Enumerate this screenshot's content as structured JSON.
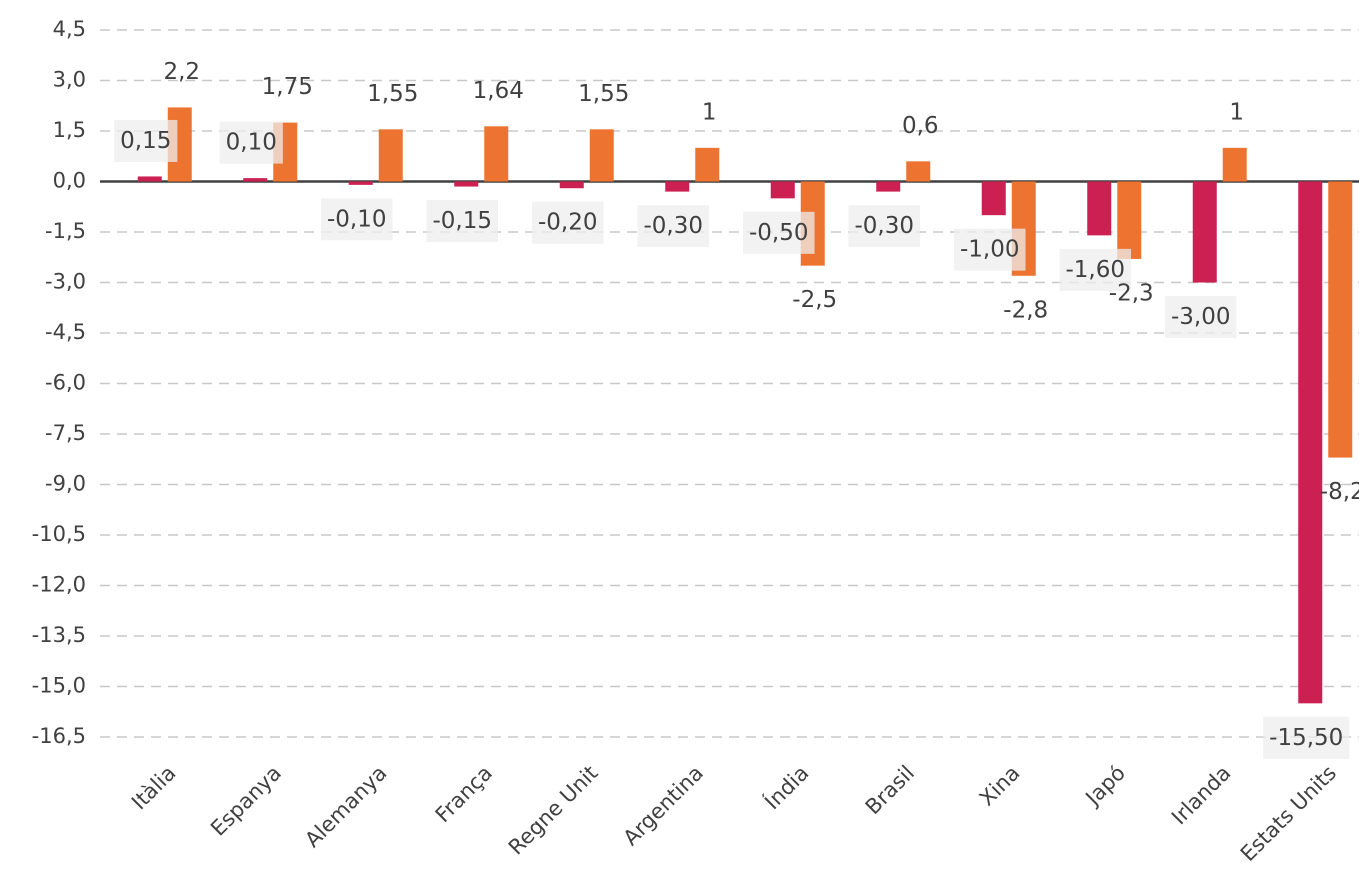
{
  "chart_data": {
    "type": "bar",
    "categories": [
      "Itàlia",
      "Espanya",
      "Alemanya",
      "França",
      "Regne Unit",
      "Argentina",
      "Índia",
      "Brasil",
      "Xina",
      "Japó",
      "Irlanda",
      "Estats Units"
    ],
    "series": [
      {
        "color": "#cc1f52",
        "values": [
          0.15,
          0.1,
          -0.1,
          -0.15,
          -0.2,
          -0.3,
          -0.5,
          -0.3,
          -1.0,
          -1.6,
          -3.0,
          -15.5
        ],
        "value_labels": [
          "0,15",
          "0,10",
          "-0,10",
          "-0,15",
          "-0,20",
          "-0,30",
          "-0,50",
          "-0,30",
          "-1,00",
          "-1,60",
          "-3,00",
          "-15,50"
        ]
      },
      {
        "color": "#ed7430",
        "values": [
          2.2,
          1.75,
          1.55,
          1.64,
          1.55,
          1,
          -2.5,
          0.6,
          -2.8,
          -2.3,
          1,
          -8.2
        ],
        "value_labels": [
          "2,2",
          "1,75",
          "1,55",
          "1,64",
          "1,55",
          "1",
          "-2,5",
          "0,6",
          "-2,8",
          "-2,3",
          "1",
          "-8,2"
        ]
      }
    ],
    "ylim": [
      -16.5,
      4.5
    ],
    "yticks": [
      {
        "value": 4.5,
        "label": "4,5"
      },
      {
        "value": 3.0,
        "label": "3,0"
      },
      {
        "value": 1.5,
        "label": "1,5"
      },
      {
        "value": 0.0,
        "label": "0,0"
      },
      {
        "value": -1.5,
        "label": "-1,5"
      },
      {
        "value": -3.0,
        "label": "-3,0"
      },
      {
        "value": -4.5,
        "label": "-4,5"
      },
      {
        "value": -6.0,
        "label": "-6,0"
      },
      {
        "value": -7.5,
        "label": "-7,5"
      },
      {
        "value": -9.0,
        "label": "-9,0"
      },
      {
        "value": -10.5,
        "label": "-10,5"
      },
      {
        "value": -12.0,
        "label": "-12,0"
      },
      {
        "value": -13.5,
        "label": "-13,5"
      },
      {
        "value": -15.0,
        "label": "-15,0"
      },
      {
        "value": -16.5,
        "label": "-16,5"
      }
    ],
    "grid": true
  }
}
